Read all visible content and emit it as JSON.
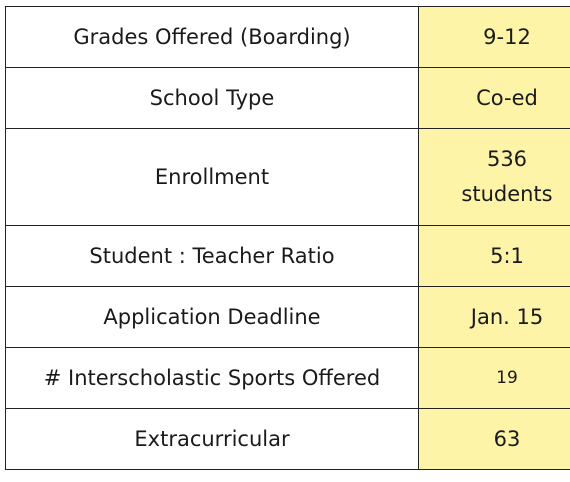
{
  "rows": [
    {
      "label": "Grades Offered (Boarding)",
      "value": "9-12"
    },
    {
      "label": "School Type",
      "value": "Co-ed"
    },
    {
      "label": "Enrollment",
      "value_lines": [
        "536",
        "students"
      ]
    },
    {
      "label": "Student : Teacher Ratio",
      "value": "5:1"
    },
    {
      "label": "Application Deadline",
      "value": "Jan. 15"
    },
    {
      "label": "# Interscholastic Sports Offered",
      "value": "19"
    },
    {
      "label": "Extracurricular",
      "value": "63"
    }
  ],
  "colors": {
    "value_cell_bg": "#fdf4a8",
    "border": "#222222"
  }
}
